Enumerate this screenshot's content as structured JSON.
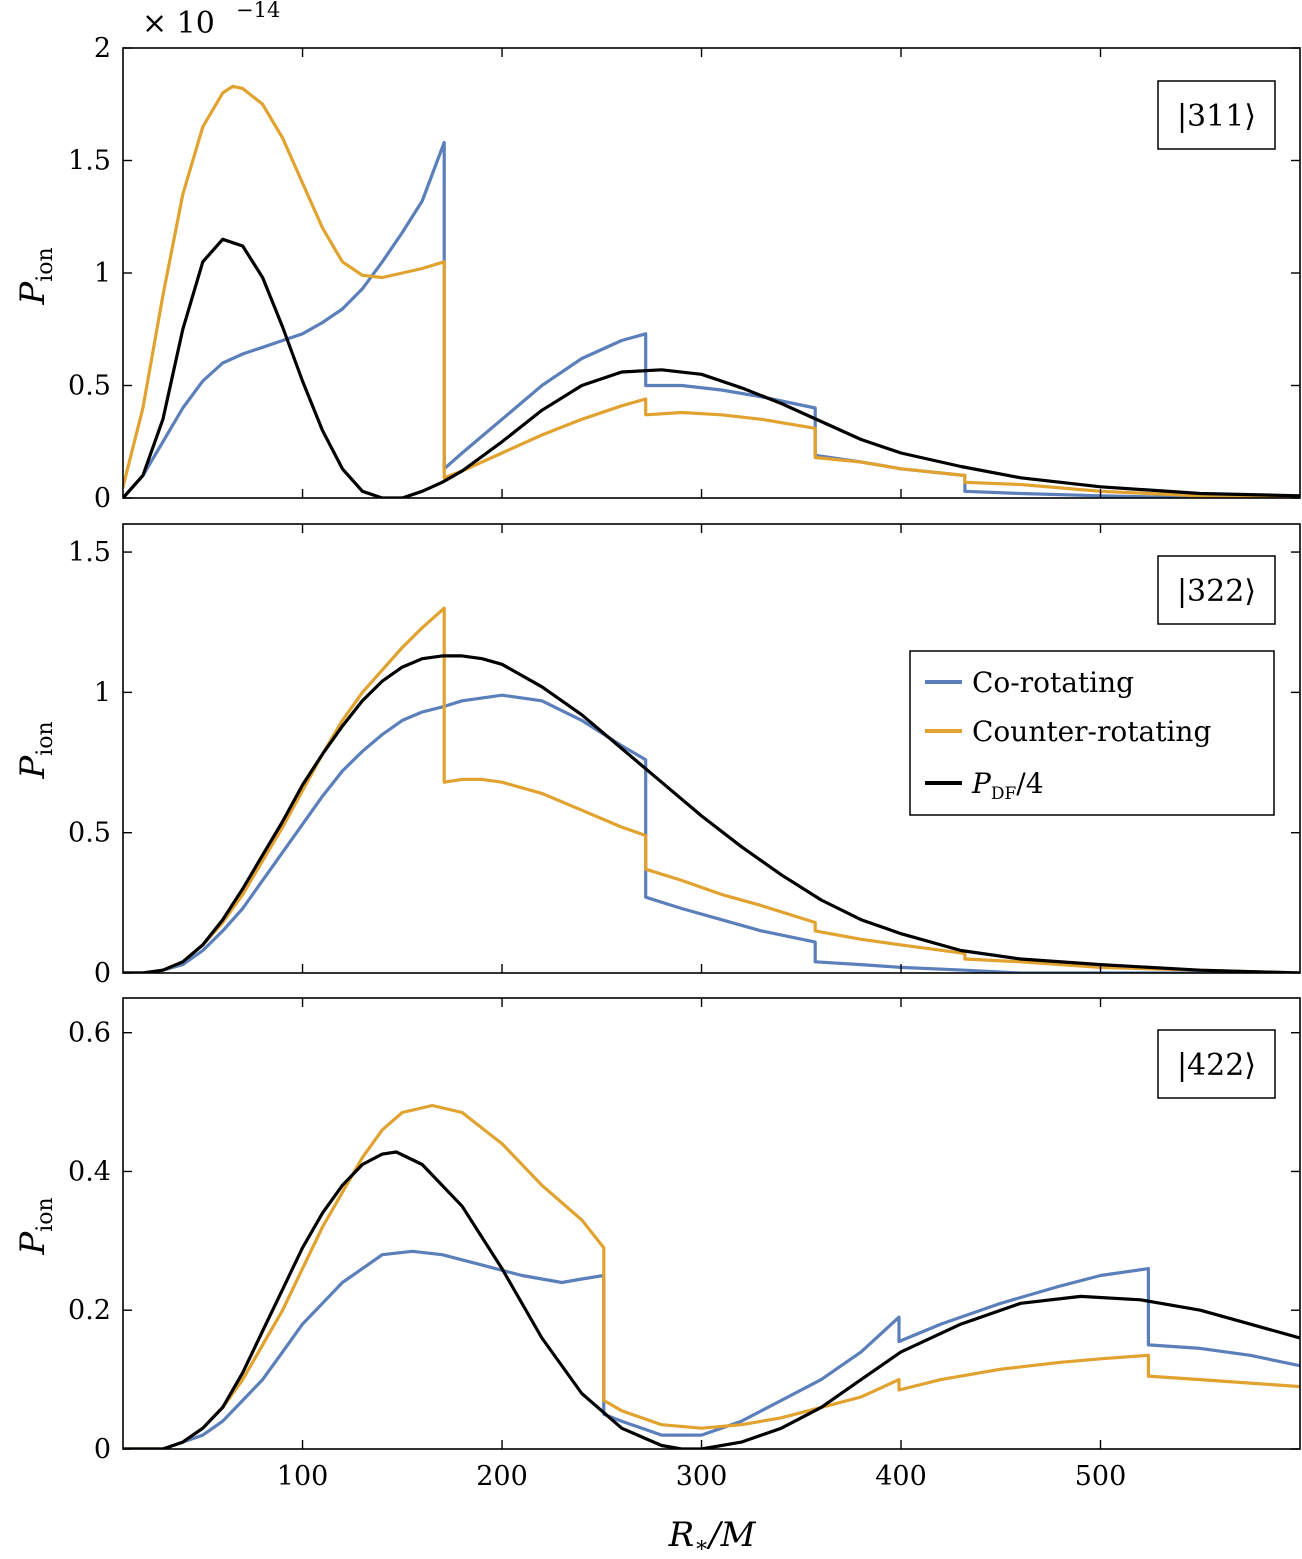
{
  "figure": {
    "scale_label": "× 10",
    "scale_exponent": "−14",
    "xlabel": "R",
    "xlabel_sub": "∗",
    "xlabel_rest": "/M",
    "ylabel": "P",
    "ylabel_sub": "ion"
  },
  "legend": {
    "items": [
      {
        "label": "Co-rotating",
        "color": "#5b7fba"
      },
      {
        "label": "Counter-rotating",
        "color": "#e2a22f"
      },
      {
        "label": "P",
        "label_sub": "DF",
        "label_rest": "/4",
        "color": "#000000"
      }
    ]
  },
  "colors": {
    "co": "#5b7fba",
    "counter": "#e2a22f",
    "df": "#000000"
  },
  "chart_data": [
    {
      "type": "line",
      "panel": "|311⟩",
      "xlim": [
        10,
        600
      ],
      "ylim": [
        0,
        2
      ],
      "xticks": [
        100,
        200,
        300,
        400,
        500
      ],
      "xtick_labels": [
        "100",
        "200",
        "300",
        "400",
        "500"
      ],
      "yticks": [
        0,
        0.5,
        1,
        1.5,
        2
      ],
      "ytick_labels": [
        "0",
        "0.5",
        "1",
        "1.5",
        "2"
      ],
      "series": [
        {
          "name": "Co-rotating",
          "color": "#5b7fba",
          "x": [
            10,
            20,
            30,
            40,
            50,
            60,
            70,
            80,
            90,
            100,
            110,
            120,
            130,
            140,
            150,
            160,
            171,
            171,
            180,
            200,
            220,
            240,
            260,
            272,
            272,
            290,
            310,
            330,
            357,
            357,
            380,
            400,
            432,
            432,
            460,
            500,
            550,
            600
          ],
          "y": [
            0,
            0.1,
            0.25,
            0.4,
            0.52,
            0.6,
            0.64,
            0.67,
            0.7,
            0.73,
            0.78,
            0.84,
            0.93,
            1.05,
            1.18,
            1.32,
            1.58,
            0.13,
            0.2,
            0.35,
            0.5,
            0.62,
            0.7,
            0.73,
            0.5,
            0.5,
            0.48,
            0.45,
            0.4,
            0.19,
            0.16,
            0.13,
            0.1,
            0.03,
            0.02,
            0.01,
            0.0,
            0.0
          ]
        },
        {
          "name": "Counter-rotating",
          "color": "#e2a22f",
          "x": [
            10,
            20,
            30,
            40,
            50,
            60,
            65,
            70,
            80,
            90,
            100,
            110,
            120,
            130,
            140,
            150,
            160,
            171,
            171,
            180,
            200,
            220,
            240,
            260,
            272,
            272,
            290,
            310,
            330,
            357,
            357,
            380,
            400,
            432,
            432,
            460,
            500,
            550,
            600
          ],
          "y": [
            0.05,
            0.4,
            0.9,
            1.35,
            1.65,
            1.8,
            1.83,
            1.82,
            1.75,
            1.6,
            1.4,
            1.2,
            1.05,
            0.99,
            0.98,
            1.0,
            1.02,
            1.05,
            0.09,
            0.12,
            0.2,
            0.28,
            0.35,
            0.41,
            0.44,
            0.37,
            0.38,
            0.37,
            0.35,
            0.31,
            0.18,
            0.16,
            0.13,
            0.1,
            0.07,
            0.06,
            0.03,
            0.01,
            0.0
          ]
        },
        {
          "name": "P_DF/4",
          "color": "#000000",
          "x": [
            10,
            20,
            30,
            40,
            50,
            60,
            70,
            80,
            90,
            100,
            110,
            120,
            130,
            140,
            150,
            160,
            170,
            180,
            200,
            220,
            240,
            260,
            280,
            300,
            320,
            340,
            360,
            380,
            400,
            430,
            460,
            500,
            550,
            600
          ],
          "y": [
            0,
            0.1,
            0.35,
            0.75,
            1.05,
            1.15,
            1.12,
            0.98,
            0.76,
            0.52,
            0.3,
            0.13,
            0.03,
            0.0,
            0.0,
            0.03,
            0.07,
            0.12,
            0.25,
            0.39,
            0.5,
            0.56,
            0.57,
            0.55,
            0.49,
            0.42,
            0.34,
            0.26,
            0.2,
            0.14,
            0.09,
            0.05,
            0.02,
            0.01
          ]
        }
      ]
    },
    {
      "type": "line",
      "panel": "|322⟩",
      "xlim": [
        10,
        600
      ],
      "ylim": [
        0,
        1.6
      ],
      "xticks": [
        100,
        200,
        300,
        400,
        500
      ],
      "xtick_labels": [
        "100",
        "200",
        "300",
        "400",
        "500"
      ],
      "yticks": [
        0,
        0.5,
        1,
        1.5
      ],
      "ytick_labels": [
        "0",
        "0.5",
        "1",
        "1.5"
      ],
      "series": [
        {
          "name": "Co-rotating",
          "color": "#5b7fba",
          "x": [
            10,
            20,
            30,
            40,
            50,
            60,
            70,
            80,
            90,
            100,
            110,
            120,
            130,
            140,
            150,
            160,
            171,
            180,
            200,
            220,
            240,
            260,
            272,
            272,
            290,
            310,
            330,
            357,
            357,
            380,
            400,
            432,
            432,
            460,
            500,
            550,
            600
          ],
          "y": [
            0,
            0.0,
            0.01,
            0.03,
            0.08,
            0.15,
            0.23,
            0.33,
            0.43,
            0.53,
            0.63,
            0.72,
            0.79,
            0.85,
            0.9,
            0.93,
            0.95,
            0.97,
            0.99,
            0.97,
            0.9,
            0.81,
            0.76,
            0.27,
            0.23,
            0.19,
            0.15,
            0.11,
            0.04,
            0.03,
            0.02,
            0.01,
            0.01,
            0.0,
            0.0,
            0.0,
            0.0
          ]
        },
        {
          "name": "Counter-rotating",
          "color": "#e2a22f",
          "x": [
            10,
            20,
            30,
            40,
            50,
            60,
            70,
            80,
            90,
            100,
            110,
            120,
            130,
            140,
            150,
            160,
            171,
            171,
            180,
            190,
            200,
            220,
            240,
            260,
            272,
            272,
            290,
            310,
            330,
            357,
            357,
            380,
            400,
            432,
            432,
            460,
            500,
            550,
            600
          ],
          "y": [
            0,
            0.0,
            0.01,
            0.04,
            0.1,
            0.18,
            0.28,
            0.4,
            0.52,
            0.65,
            0.78,
            0.9,
            1.0,
            1.08,
            1.16,
            1.23,
            1.3,
            0.68,
            0.69,
            0.69,
            0.68,
            0.64,
            0.58,
            0.52,
            0.49,
            0.37,
            0.33,
            0.28,
            0.24,
            0.18,
            0.15,
            0.12,
            0.1,
            0.07,
            0.05,
            0.04,
            0.02,
            0.01,
            0.0
          ]
        },
        {
          "name": "P_DF/4",
          "color": "#000000",
          "x": [
            10,
            20,
            30,
            40,
            50,
            60,
            70,
            80,
            90,
            100,
            110,
            120,
            130,
            140,
            150,
            160,
            170,
            180,
            190,
            200,
            220,
            240,
            260,
            280,
            300,
            320,
            340,
            360,
            380,
            400,
            430,
            460,
            500,
            550,
            600
          ],
          "y": [
            0,
            0.0,
            0.01,
            0.04,
            0.1,
            0.19,
            0.3,
            0.42,
            0.54,
            0.67,
            0.78,
            0.88,
            0.97,
            1.04,
            1.09,
            1.12,
            1.13,
            1.13,
            1.12,
            1.1,
            1.02,
            0.92,
            0.8,
            0.68,
            0.56,
            0.45,
            0.35,
            0.26,
            0.19,
            0.14,
            0.08,
            0.05,
            0.03,
            0.01,
            0.0
          ]
        }
      ]
    },
    {
      "type": "line",
      "panel": "|422⟩",
      "xlim": [
        10,
        600
      ],
      "ylim": [
        0,
        0.65
      ],
      "xticks": [
        100,
        200,
        300,
        400,
        500
      ],
      "xtick_labels": [
        "100",
        "200",
        "300",
        "400",
        "500"
      ],
      "yticks": [
        0,
        0.2,
        0.4,
        0.6
      ],
      "ytick_labels": [
        "0",
        "0.2",
        "0.4",
        "0.6"
      ],
      "series": [
        {
          "name": "Co-rotating",
          "color": "#5b7fba",
          "x": [
            10,
            20,
            30,
            40,
            50,
            60,
            70,
            80,
            90,
            100,
            110,
            120,
            130,
            140,
            155,
            170,
            190,
            210,
            230,
            240,
            251,
            251,
            260,
            280,
            300,
            320,
            340,
            360,
            380,
            399,
            399,
            420,
            450,
            480,
            500,
            524,
            524,
            550,
            575,
            600
          ],
          "y": [
            0,
            0.0,
            0.0,
            0.01,
            0.02,
            0.04,
            0.07,
            0.1,
            0.14,
            0.18,
            0.21,
            0.24,
            0.26,
            0.28,
            0.285,
            0.28,
            0.265,
            0.25,
            0.24,
            0.245,
            0.25,
            0.05,
            0.04,
            0.02,
            0.02,
            0.04,
            0.07,
            0.1,
            0.14,
            0.19,
            0.155,
            0.18,
            0.21,
            0.235,
            0.25,
            0.26,
            0.15,
            0.145,
            0.135,
            0.12
          ]
        },
        {
          "name": "Counter-rotating",
          "color": "#e2a22f",
          "x": [
            10,
            20,
            30,
            40,
            50,
            60,
            70,
            80,
            90,
            100,
            110,
            120,
            130,
            140,
            150,
            165,
            180,
            200,
            220,
            240,
            251,
            251,
            260,
            280,
            300,
            320,
            340,
            360,
            380,
            399,
            399,
            420,
            450,
            480,
            500,
            524,
            524,
            550,
            575,
            600
          ],
          "y": [
            0,
            0.0,
            0.0,
            0.01,
            0.03,
            0.06,
            0.1,
            0.15,
            0.2,
            0.26,
            0.32,
            0.37,
            0.42,
            0.46,
            0.485,
            0.495,
            0.485,
            0.44,
            0.38,
            0.33,
            0.29,
            0.07,
            0.055,
            0.035,
            0.03,
            0.035,
            0.045,
            0.06,
            0.075,
            0.1,
            0.085,
            0.1,
            0.115,
            0.125,
            0.13,
            0.135,
            0.105,
            0.1,
            0.095,
            0.09
          ]
        },
        {
          "name": "P_DF/4",
          "color": "#000000",
          "x": [
            10,
            20,
            30,
            40,
            50,
            60,
            70,
            80,
            90,
            100,
            110,
            120,
            130,
            140,
            147,
            160,
            180,
            200,
            220,
            240,
            260,
            280,
            290,
            300,
            320,
            340,
            360,
            380,
            400,
            430,
            460,
            490,
            520,
            550,
            575,
            600
          ],
          "y": [
            0,
            0.0,
            0.0,
            0.01,
            0.03,
            0.06,
            0.11,
            0.17,
            0.23,
            0.29,
            0.34,
            0.38,
            0.41,
            0.425,
            0.428,
            0.41,
            0.35,
            0.26,
            0.16,
            0.08,
            0.03,
            0.005,
            0.0,
            0.0,
            0.01,
            0.03,
            0.06,
            0.1,
            0.14,
            0.18,
            0.21,
            0.22,
            0.215,
            0.2,
            0.18,
            0.16
          ]
        }
      ]
    }
  ]
}
